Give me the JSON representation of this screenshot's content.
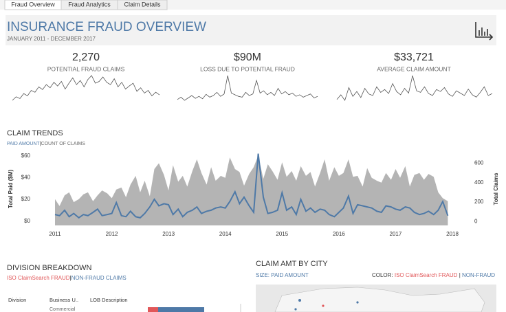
{
  "tabs": [
    "Fraud Overview",
    "Fraud Analytics",
    "Claim Details"
  ],
  "header": {
    "title": "INSURANCE FRAUD OVERVIEW",
    "subtitle": "JANUARY 2011 - DECEMBER 2017"
  },
  "kpis": [
    {
      "value": "2,270",
      "label": "POTENTIAL FRAUD CLAIMS"
    },
    {
      "value": "$90M",
      "label": "LOSS DUE TO POTENTIAL FRAUD"
    },
    {
      "value": "$33,721",
      "label": "AVERAGE CLAIM AMOUNT"
    }
  ],
  "chart_data": [
    {
      "type": "line",
      "color": "#555555",
      "values": [
        20,
        28,
        24,
        35,
        30,
        42,
        38,
        50,
        44,
        55,
        48,
        60,
        52,
        62,
        45,
        58,
        70,
        55,
        64,
        50,
        66,
        75,
        58,
        62,
        72,
        60,
        55,
        68,
        50,
        60,
        45,
        52,
        58,
        40,
        48,
        36,
        42,
        30,
        38,
        32
      ]
    },
    {
      "type": "line",
      "color": "#555555",
      "values": [
        12,
        18,
        10,
        16,
        22,
        15,
        20,
        14,
        25,
        18,
        22,
        30,
        20,
        26,
        72,
        28,
        24,
        20,
        18,
        30,
        22,
        26,
        60,
        28,
        34,
        24,
        30,
        22,
        40,
        26,
        32,
        24,
        28,
        20,
        24,
        18,
        22,
        26,
        16,
        20
      ]
    },
    {
      "type": "line",
      "color": "#555555",
      "values": [
        30,
        42,
        28,
        60,
        38,
        50,
        35,
        58,
        44,
        40,
        62,
        48,
        55,
        45,
        70,
        50,
        42,
        58,
        46,
        90,
        52,
        48,
        62,
        45,
        40,
        55,
        50,
        60,
        44,
        38,
        52,
        46,
        40,
        56,
        42,
        36,
        48,
        62,
        40,
        45
      ]
    },
    {
      "type": "combo",
      "title": "CLAIM TRENDS",
      "separator": "|",
      "ylabel": "Total Paid ($M)",
      "y2label": "Total Claims",
      "xlim": [
        2011,
        2018
      ],
      "xticks": [
        2011,
        2012,
        2013,
        2014,
        2015,
        2016,
        2017,
        2018
      ],
      "ylim": [
        -4,
        63
      ],
      "yticks": [
        {
          "value": 60,
          "label": "$60"
        },
        {
          "value": 40,
          "label": "$40"
        },
        {
          "value": 20,
          "label": "$20"
        },
        {
          "value": 0,
          "label": "$0"
        }
      ],
      "y2lim": [
        -40,
        710
      ],
      "y2ticks": [
        600,
        400,
        200,
        0
      ],
      "x": [
        2011.0,
        2011.08,
        2011.17,
        2011.25,
        2011.33,
        2011.42,
        2011.5,
        2011.58,
        2011.67,
        2011.75,
        2011.83,
        2011.92,
        2012.0,
        2012.08,
        2012.17,
        2012.25,
        2012.33,
        2012.42,
        2012.5,
        2012.58,
        2012.67,
        2012.75,
        2012.83,
        2012.92,
        2013.0,
        2013.08,
        2013.17,
        2013.25,
        2013.33,
        2013.42,
        2013.5,
        2013.58,
        2013.67,
        2013.75,
        2013.83,
        2013.92,
        2014.0,
        2014.08,
        2014.17,
        2014.25,
        2014.33,
        2014.42,
        2014.5,
        2014.58,
        2014.67,
        2014.75,
        2014.83,
        2014.92,
        2015.0,
        2015.08,
        2015.17,
        2015.25,
        2015.33,
        2015.42,
        2015.5,
        2015.58,
        2015.67,
        2015.75,
        2015.83,
        2015.92,
        2016.0,
        2016.08,
        2016.17,
        2016.25,
        2016.33,
        2016.42,
        2016.5,
        2016.58,
        2016.67,
        2016.75,
        2016.83,
        2016.92,
        2017.0,
        2017.08,
        2017.17,
        2017.25,
        2017.33,
        2017.42,
        2017.5,
        2017.58,
        2017.67,
        2017.75,
        2017.83,
        2017.92
      ],
      "series": [
        {
          "name": "COUNT OF CLAIMS",
          "type": "area",
          "axis": "y2",
          "color": "#b4b4b4",
          "values": [
            230,
            160,
            270,
            300,
            200,
            230,
            280,
            300,
            210,
            270,
            320,
            290,
            240,
            330,
            350,
            250,
            380,
            470,
            300,
            420,
            260,
            540,
            600,
            480,
            320,
            580,
            410,
            470,
            360,
            520,
            640,
            500,
            380,
            560,
            420,
            470,
            450,
            660,
            540,
            510,
            370,
            490,
            560,
            680,
            440,
            590,
            520,
            430,
            610,
            460,
            520,
            420,
            570,
            470,
            510,
            360,
            500,
            640,
            420,
            560,
            470,
            500,
            640,
            460,
            470,
            360,
            550,
            450,
            420,
            400,
            500,
            430,
            540,
            450,
            570,
            360,
            480,
            500,
            430,
            490,
            460,
            300,
            240,
            210
          ]
        },
        {
          "name": "PAID AMOUNT",
          "type": "line",
          "axis": "y",
          "color": "#4e79a7",
          "values": [
            6,
            5,
            10,
            4,
            7,
            3,
            6,
            5,
            8,
            11,
            5,
            6,
            7,
            17,
            5,
            4,
            9,
            4,
            3,
            7,
            13,
            20,
            14,
            16,
            15,
            6,
            11,
            4,
            8,
            10,
            13,
            7,
            9,
            10,
            12,
            13,
            12,
            18,
            27,
            16,
            22,
            14,
            8,
            62,
            22,
            7,
            8,
            10,
            26,
            10,
            13,
            6,
            20,
            9,
            12,
            8,
            11,
            10,
            6,
            4,
            8,
            12,
            23,
            7,
            15,
            14,
            13,
            12,
            9,
            8,
            14,
            13,
            11,
            10,
            13,
            12,
            8,
            6,
            7,
            9,
            6,
            10,
            18,
            5
          ]
        }
      ]
    }
  ],
  "division": {
    "title": "DIVISION BREAKDOWN",
    "legend": [
      "ISO ClaimSearch FRAUD",
      "NON-FRAUD CLAIMS"
    ],
    "separator": "|",
    "columns": [
      "Division",
      "Business U..",
      "LOB Description"
    ],
    "row": "Commercial"
  },
  "city": {
    "title": "CLAIM AMT BY CITY",
    "size_label": "SIZE: PAID AMOUNT",
    "color_label": "COLOR:",
    "legend": [
      "ISO ClaimSearch FRAUD",
      "NON-FRAUD"
    ],
    "separator": "|"
  }
}
